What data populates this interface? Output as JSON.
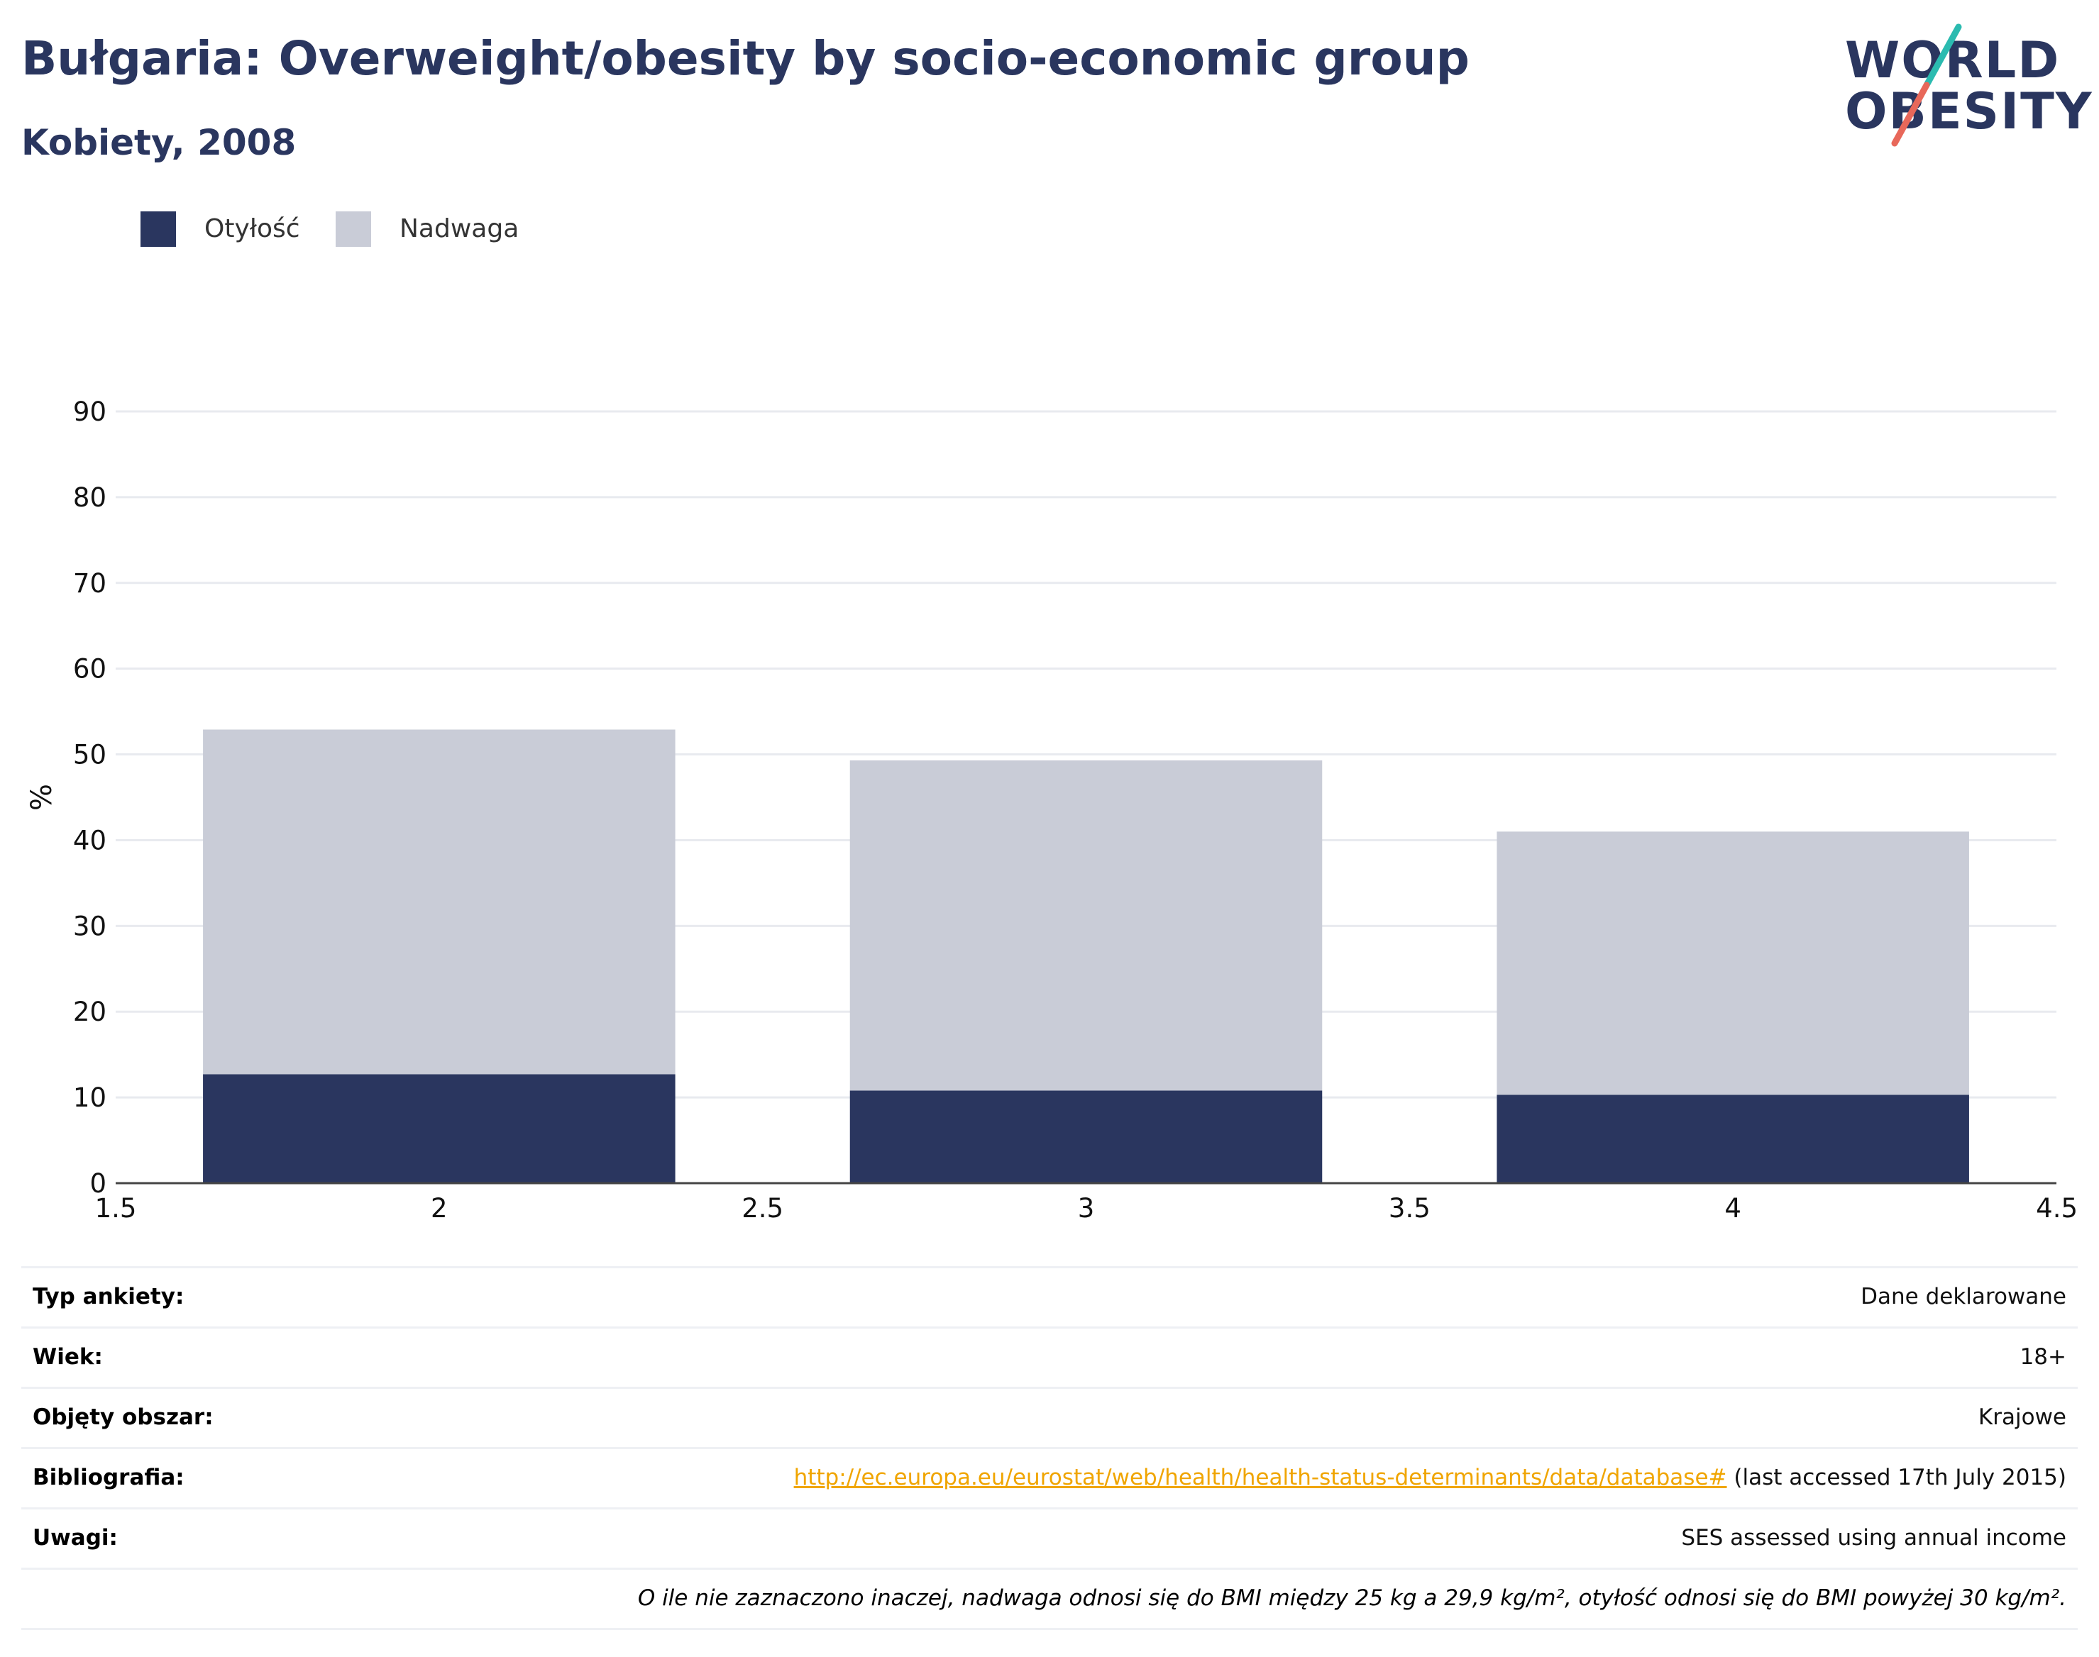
{
  "header": {
    "title": "Bułgaria: Overweight/obesity by socio-economic group",
    "subtitle": "Kobiety, 2008"
  },
  "logo": {
    "line1": "WORLD",
    "line2": "OBESITY",
    "accent_colors": [
      "#2bbbb0",
      "#e8685a"
    ]
  },
  "legend": [
    {
      "label": "Otyłość",
      "color": "#2a365f"
    },
    {
      "label": "Nadwaga",
      "color": "#c9ccd7"
    }
  ],
  "chart_data": {
    "type": "bar",
    "stacked": true,
    "x": [
      2,
      3,
      4
    ],
    "series": [
      {
        "name": "Otyłość",
        "values": [
          12.7,
          10.8,
          10.3
        ],
        "color": "#2a365f"
      },
      {
        "name": "Nadwaga",
        "values": [
          40.2,
          38.5,
          30.7
        ],
        "color": "#c9ccd7"
      }
    ],
    "xlim": [
      1.5,
      4.5
    ],
    "xticks": [
      "1.5",
      "2",
      "2.5",
      "3",
      "3.5",
      "4",
      "4.5"
    ],
    "ylim": [
      0,
      90
    ],
    "yticks": [
      "0",
      "10",
      "20",
      "30",
      "40",
      "50",
      "60",
      "70",
      "80",
      "90"
    ],
    "ylabel": "%",
    "xlabel": "",
    "grid": true,
    "legend_position": "top-left"
  },
  "info": {
    "rows": [
      {
        "label": "Typ ankiety:",
        "value": "Dane deklarowane"
      },
      {
        "label": "Wiek:",
        "value": "18+"
      },
      {
        "label": "Objęty obszar:",
        "value": "Krajowe"
      },
      {
        "label": "Bibliografia:",
        "link": "http://ec.europa.eu/eurostat/web/health/health-status-determinants/data/database#",
        "value": " (last accessed 17th July 2015)"
      },
      {
        "label": "Uwagi:",
        "value": "SES assessed using annual income"
      }
    ],
    "note": "O ile nie zaznaczono inaczej, nadwaga odnosi się do BMI między 25 kg a 29,9 kg/m², otyłość odnosi się do BMI powyżej 30 kg/m²."
  }
}
